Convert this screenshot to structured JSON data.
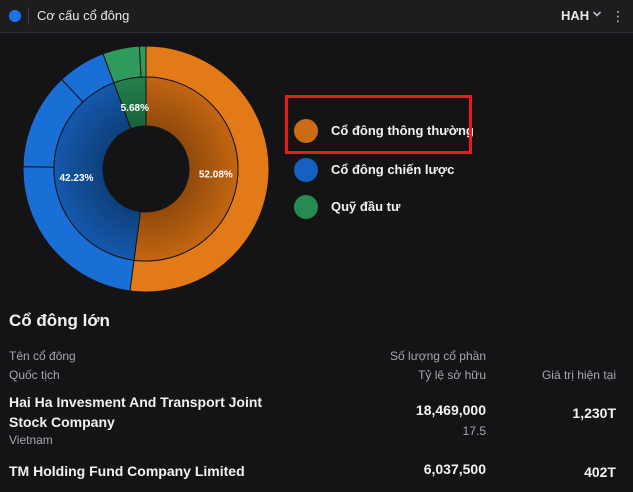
{
  "header": {
    "title": "Cơ cấu cổ đông",
    "ticker": "HAH",
    "accent": "#1a73e8"
  },
  "chart_data": {
    "type": "pie",
    "categories": [
      "Cổ đông thông thường",
      "Cổ đông chiến lược",
      "Quỹ đầu tư"
    ],
    "values": [
      52.08,
      42.23,
      5.68
    ],
    "data_labels": [
      "52.08%",
      "42.23%",
      "5.68%"
    ],
    "colors": [
      "#e27a17",
      "#1a6fd6",
      "#2e9a5c"
    ],
    "legend_position": "right"
  },
  "legend": [
    {
      "label": "Cổ đông thông thường",
      "color": "#e27a17"
    },
    {
      "label": "Cổ đông chiến lược",
      "color": "#1a6fd6"
    },
    {
      "label": "Quỹ đầu tư",
      "color": "#2e9a5c"
    }
  ],
  "holders": {
    "title": "Cổ đông lớn",
    "columns": {
      "name": "Tên cổ đông",
      "nationality": "Quốc tịch",
      "shares": "Số lượng cổ phần",
      "ratio": "Tỷ lệ sở hữu",
      "value": "Giá trị hiện tại"
    },
    "rows": [
      {
        "name": "Hai Ha Invesment And Transport Joint Stock Company",
        "nationality": "Vietnam",
        "shares": "18,469,000",
        "ratio": "17.5",
        "value": "1,230T"
      },
      {
        "name": "TM Holding Fund Company Limited",
        "shares": "6,037,500",
        "value": "402T"
      }
    ]
  }
}
